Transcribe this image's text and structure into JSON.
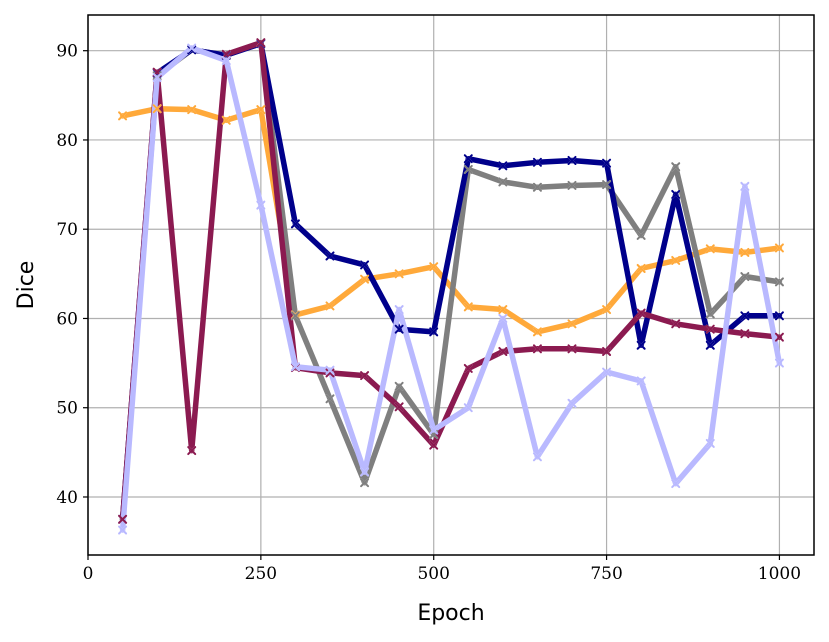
{
  "chart_data": {
    "type": "line",
    "xlabel": "Epoch",
    "ylabel": "Dice",
    "xlim": [
      0,
      1050
    ],
    "ylim": [
      33.5,
      94
    ],
    "x_ticks": [
      0,
      250,
      500,
      750,
      1000
    ],
    "y_ticks": [
      40,
      50,
      60,
      70,
      80,
      90
    ],
    "x_tick_labels": [
      "0",
      "250",
      "500",
      "750",
      "1000"
    ],
    "y_tick_labels": [
      "40",
      "50",
      "60",
      "70",
      "80",
      "90"
    ],
    "grid": true,
    "x": [
      50,
      100,
      150,
      200,
      250,
      300,
      350,
      400,
      450,
      500,
      550,
      600,
      650,
      700,
      750,
      800,
      850,
      900,
      950,
      1000
    ],
    "series": [
      {
        "color": "#ffa93a",
        "values": [
          82.7,
          83.5,
          83.4,
          82.2,
          83.4,
          60.4,
          61.4,
          64.4,
          65.0,
          65.8,
          61.3,
          61.0,
          58.5,
          59.4,
          61.0,
          65.6,
          66.5,
          67.8,
          67.4,
          67.9
        ]
      },
      {
        "color": "#7f7f7f",
        "values": [
          37.5,
          87.2,
          90.1,
          89.5,
          90.9,
          60.3,
          51.0,
          41.6,
          52.4,
          47.0,
          76.7,
          75.3,
          74.7,
          74.9,
          75.0,
          69.3,
          77.0,
          60.5,
          64.7,
          64.1
        ]
      },
      {
        "color": "#00008b",
        "values": [
          37.5,
          87.5,
          90.1,
          89.5,
          90.8,
          70.6,
          67.0,
          66.0,
          58.8,
          58.5,
          77.9,
          77.1,
          77.5,
          77.7,
          77.4,
          57.0,
          73.9,
          57.0,
          60.3,
          60.3
        ]
      },
      {
        "color": "#8b1a50",
        "values": [
          37.5,
          87.6,
          45.2,
          89.6,
          90.9,
          54.5,
          53.9,
          53.6,
          50.1,
          45.8,
          54.4,
          56.3,
          56.6,
          56.6,
          56.3,
          60.6,
          59.4,
          58.8,
          58.3,
          57.9
        ]
      },
      {
        "color": "#b9b9ff",
        "values": [
          36.3,
          87.0,
          90.3,
          88.9,
          72.7,
          54.6,
          54.2,
          42.8,
          61.0,
          47.5,
          50.0,
          60.0,
          44.5,
          50.5,
          54.0,
          53.0,
          41.5,
          46.0,
          74.8,
          55.0
        ]
      }
    ]
  }
}
